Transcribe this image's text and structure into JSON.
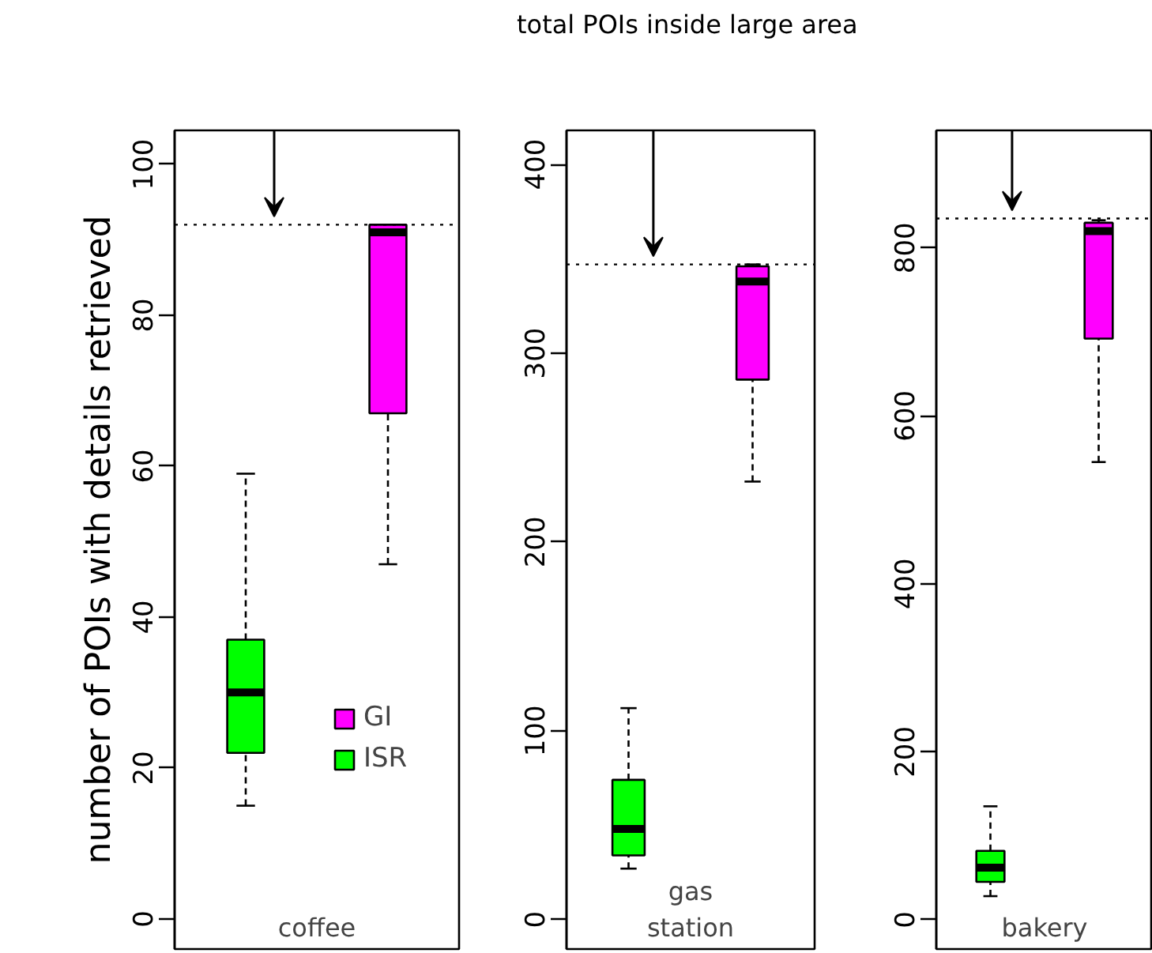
{
  "chart_data": [
    {
      "type": "box",
      "categories": [
        null,
        null
      ],
      "xlabel": "coffee",
      "ylabel": "number of POIs with details retrieved",
      "ylim": [
        -4,
        104.5
      ],
      "yticks": [
        0,
        20,
        40,
        60,
        80,
        100
      ],
      "grid": false,
      "legend": "bottom right",
      "ref_lines": [
        {
          "axis": "y",
          "value": 92,
          "line_style": "dotted",
          "color": "#000000"
        }
      ],
      "series": [
        {
          "name": "GI",
          "color": "#ff00ff",
          "boxes": [
            null,
            {
              "low": 47,
              "q1": 67,
              "median": 91,
              "q3": 92,
              "high": 92
            }
          ]
        },
        {
          "name": "ISR",
          "color": "#00ff00",
          "boxes": [
            {
              "low": 15,
              "q1": 22,
              "median": 30,
              "q3": 37,
              "high": 59
            },
            null
          ]
        }
      ]
    },
    {
      "type": "box",
      "categories": [
        null,
        null
      ],
      "xlabel": "gas station",
      "ylim": [
        -15.6,
        418
      ],
      "yticks": [
        0,
        100,
        200,
        300,
        400
      ],
      "grid": false,
      "annotations": [
        "total POIs inside large area"
      ],
      "ref_lines": [
        {
          "axis": "y",
          "value": 347,
          "line_style": "dotted",
          "color": "#000000"
        }
      ],
      "series": [
        {
          "color": "#ff00ff",
          "boxes": [
            null,
            {
              "low": 232,
              "q1": 286,
              "median": 338,
              "q3": 346,
              "high": 347
            }
          ]
        },
        {
          "color": "#00ff00",
          "boxes": [
            {
              "low": 27,
              "q1": 34,
              "median": 48,
              "q3": 74,
              "high": 112
            },
            null
          ]
        }
      ]
    },
    {
      "type": "box",
      "categories": [
        null,
        null
      ],
      "xlabel": "bakery",
      "ylim": [
        -35,
        940
      ],
      "yticks": [
        0,
        200,
        400,
        600,
        800
      ],
      "grid": false,
      "ref_lines": [
        {
          "axis": "y",
          "value": 835,
          "line_style": "dotted",
          "color": "#000000"
        }
      ],
      "series": [
        {
          "color": "#ff00ff",
          "boxes": [
            null,
            {
              "low": 545,
              "q1": 692,
              "median": 820,
              "q3": 830,
              "high": 833
            }
          ]
        },
        {
          "color": "#00ff00",
          "boxes": [
            {
              "low": 28,
              "q1": 45,
              "median": 62,
              "q3": 82,
              "high": 135
            },
            null
          ]
        }
      ]
    }
  ]
}
